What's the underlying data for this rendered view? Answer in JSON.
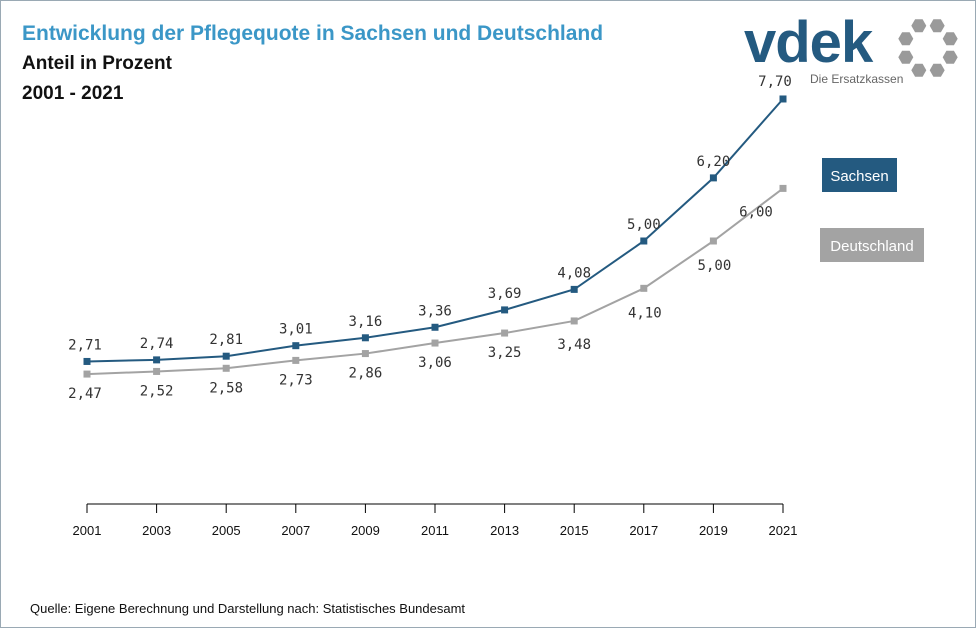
{
  "header": {
    "title": "Entwicklung der Pflegequote in Sachsen und Deutschland",
    "subtitle": "Anteil in Prozent",
    "period": "2001 - 2021"
  },
  "logo": {
    "word": "vdek",
    "tagline": "Die Ersatzkassen"
  },
  "footer": {
    "source": "Quelle: Eigene Berechnung und Darstellung nach: Statistisches Bundesamt"
  },
  "colors": {
    "sachsen": "#245a80",
    "deutschland": "#a3a3a3",
    "title": "#3b97c7",
    "logo_ring": "#9a9a9a"
  },
  "chart_data": {
    "type": "line",
    "title": "Entwicklung der Pflegequote in Sachsen und Deutschland",
    "xlabel": "",
    "ylabel": "",
    "x": [
      "2001",
      "2003",
      "2005",
      "2007",
      "2009",
      "2011",
      "2013",
      "2015",
      "2017",
      "2019",
      "2021"
    ],
    "ylim": [
      0,
      9
    ],
    "grid": false,
    "legend_placement": "right",
    "series": [
      {
        "name": "Sachsen",
        "color": "#245a80",
        "values": [
          2.71,
          2.74,
          2.81,
          3.01,
          3.16,
          3.36,
          3.69,
          4.08,
          5.0,
          6.2,
          7.7
        ],
        "labels": [
          "2,71",
          "2,74",
          "2,81",
          "3,01",
          "3,16",
          "3,36",
          "3,69",
          "4,08",
          "5,00",
          "6,20",
          "7,70"
        ]
      },
      {
        "name": "Deutschland",
        "color": "#a3a3a3",
        "values": [
          2.47,
          2.52,
          2.58,
          2.73,
          2.86,
          3.06,
          3.25,
          3.48,
          4.1,
          5.0,
          6.0
        ],
        "labels": [
          "2,47",
          "2,52",
          "2,58",
          "2,73",
          "2,86",
          "3,06",
          "3,25",
          "3,48",
          "4,10",
          "5,00",
          "6,00"
        ]
      }
    ]
  }
}
